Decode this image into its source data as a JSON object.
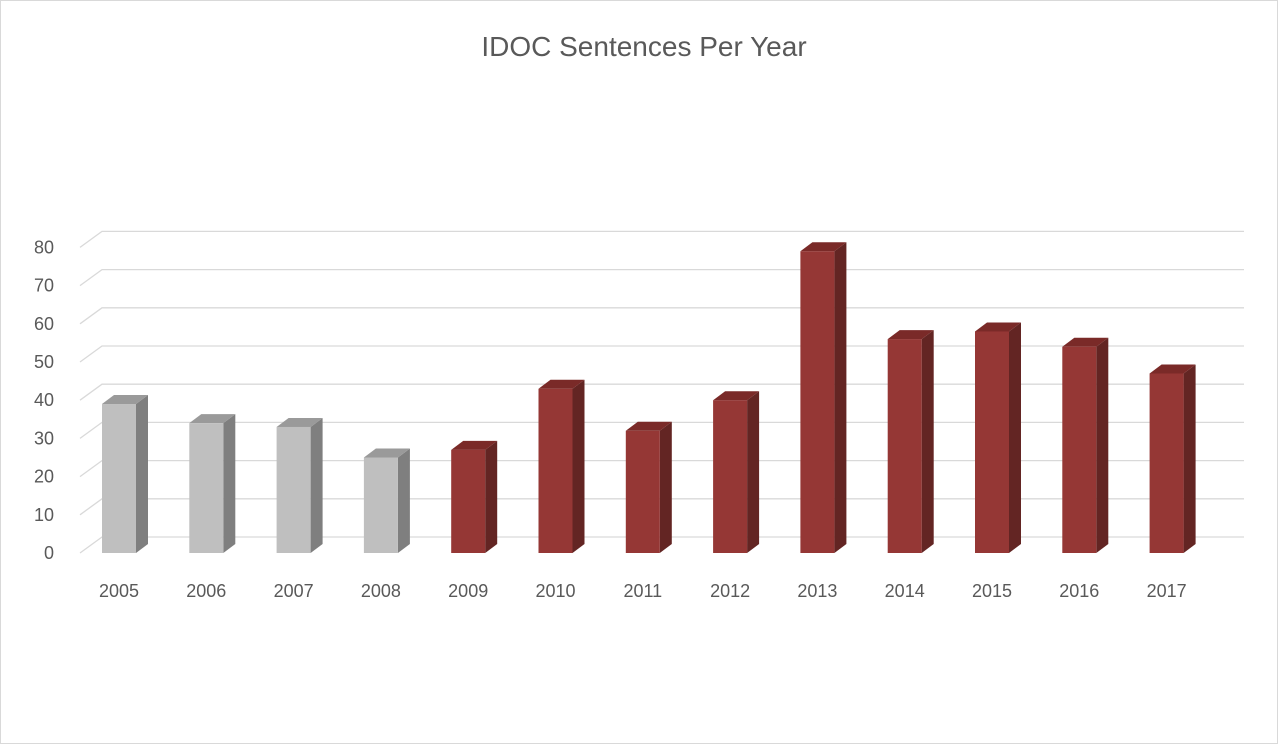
{
  "chart_data": {
    "type": "bar",
    "title": "IDOC Sentences Per Year",
    "xlabel": "",
    "ylabel": "",
    "categories": [
      "2005",
      "2006",
      "2007",
      "2008",
      "2009",
      "2010",
      "2011",
      "2012",
      "2013",
      "2014",
      "2015",
      "2016",
      "2017"
    ],
    "values": [
      39,
      34,
      33,
      25,
      27,
      43,
      32,
      40,
      79,
      56,
      58,
      54,
      47
    ],
    "bar_style": [
      "gray",
      "gray",
      "gray",
      "gray",
      "red",
      "red",
      "red",
      "red",
      "red",
      "red",
      "red",
      "red",
      "red"
    ],
    "ylim": [
      0,
      80
    ],
    "yticks": [
      "0",
      "10",
      "20",
      "30",
      "40",
      "50",
      "60",
      "70",
      "80"
    ],
    "ytick_values": [
      0,
      10,
      20,
      30,
      40,
      50,
      60,
      70,
      80
    ],
    "grid": true,
    "legend": "none",
    "three_d": true,
    "colors": {
      "gray": {
        "front": "#bfbfbf",
        "side": "#7f7f7f",
        "top": "#9a9a9a"
      },
      "red": {
        "front": "#953735",
        "side": "#632523",
        "top": "#7a2a28"
      },
      "grid": "#d9d9d9",
      "text": "#595959"
    }
  }
}
